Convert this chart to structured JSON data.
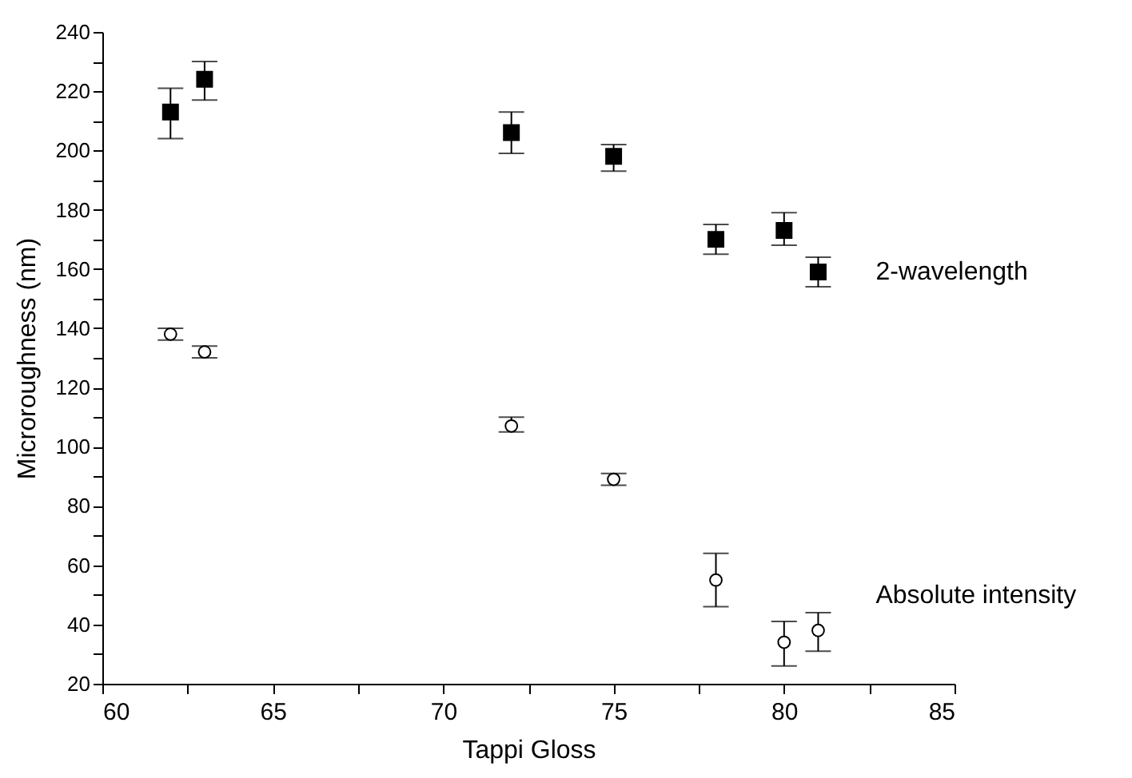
{
  "chart_data": {
    "type": "scatter",
    "xlabel": "Tappi Gloss",
    "ylabel": "Microroughness (nm)",
    "xlim": [
      60,
      85
    ],
    "ylim": [
      20,
      240
    ],
    "xticks": [
      60,
      {
        "value": 62.5,
        "label": null
      },
      65,
      {
        "value": 67.5,
        "label": null
      },
      70,
      {
        "value": 72.5,
        "label": null
      },
      75,
      {
        "value": 77.5,
        "label": null
      },
      80,
      {
        "value": 82.5,
        "label": null
      },
      85
    ],
    "yticks": [
      20,
      {
        "value": 30,
        "label": null
      },
      40,
      {
        "value": 50,
        "label": null
      },
      60,
      {
        "value": 70,
        "label": null
      },
      80,
      {
        "value": 90,
        "label": null
      },
      100,
      {
        "value": 110,
        "label": null
      },
      120,
      {
        "value": 130,
        "label": null
      },
      140,
      {
        "value": 150,
        "label": null
      },
      160,
      {
        "value": 170,
        "label": null
      },
      180,
      {
        "value": 190,
        "label": null
      },
      200,
      {
        "value": 210,
        "label": null
      },
      220,
      {
        "value": 230,
        "label": null
      },
      240
    ],
    "grid": false,
    "series": [
      {
        "name": "2-wavelength",
        "color": "#000000",
        "marker": "square",
        "x": [
          62,
          63,
          72,
          75,
          78,
          80,
          81
        ],
        "values": [
          213,
          224,
          206,
          198,
          170,
          173,
          159
        ],
        "errors": [
          [
            204,
            221
          ],
          [
            217,
            230
          ],
          [
            199,
            213
          ],
          [
            193,
            202
          ],
          [
            165,
            175
          ],
          [
            168,
            179
          ],
          [
            154,
            164
          ]
        ]
      },
      {
        "name": "Absolute intensity",
        "color": "#000000",
        "marker": "circle",
        "x": [
          62,
          63,
          72,
          75,
          78,
          80,
          81
        ],
        "values": [
          138,
          132,
          107,
          89,
          55,
          34,
          38
        ],
        "errors": [
          [
            136,
            140
          ],
          [
            130,
            134
          ],
          [
            105,
            110
          ],
          [
            87,
            91
          ],
          [
            46,
            64
          ],
          [
            26,
            41
          ],
          [
            31,
            44
          ]
        ]
      }
    ]
  }
}
